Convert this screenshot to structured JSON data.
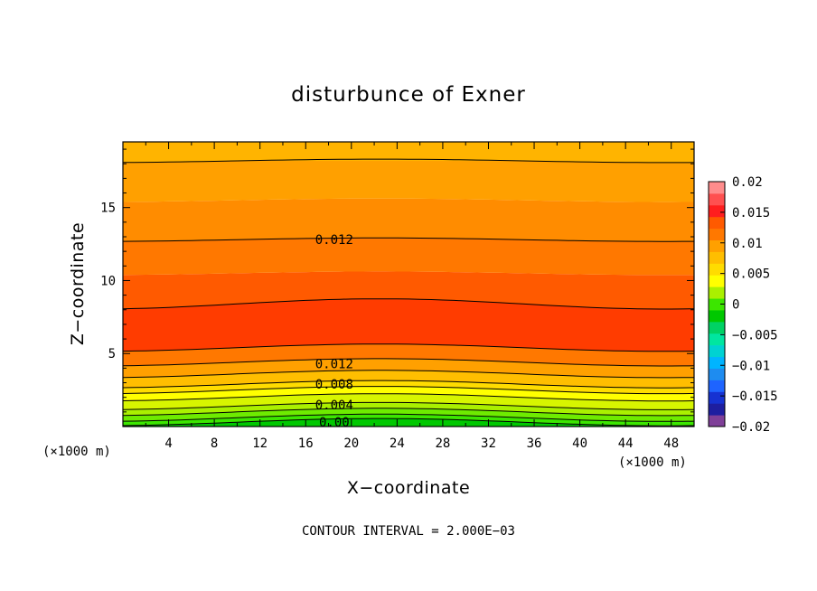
{
  "chart_data": {
    "type": "contour",
    "title": "disturbunce of Exner",
    "xlabel": "X−coordinate",
    "ylabel": "Z−coordinate",
    "x_unit": "(×1000 m)",
    "y_unit": "(×1000 m)",
    "xlim": [
      0,
      50
    ],
    "ylim": [
      0,
      19.5
    ],
    "x_ticks": [
      4,
      8,
      12,
      16,
      20,
      24,
      28,
      32,
      36,
      40,
      44,
      48
    ],
    "y_ticks": [
      5,
      10,
      15
    ],
    "contour_interval_text": "CONTOUR INTERVAL = 2.000E−03",
    "contour_labels": [
      {
        "text": "0.012",
        "x": 18.5,
        "z": 12.8
      },
      {
        "text": "0.012",
        "x": 18.5,
        "z": 4.3
      },
      {
        "text": "0.008",
        "x": 18.5,
        "z": 2.9
      },
      {
        "text": "0.004",
        "x": 18.5,
        "z": 1.5
      },
      {
        "text": "0.00",
        "x": 18.5,
        "z": 0.3
      }
    ],
    "colorbar": {
      "ticks": [
        "0.02",
        "0.015",
        "0.01",
        "0.005",
        "0",
        "−0.005",
        "−0.01",
        "−0.015",
        "−0.02"
      ],
      "min": -0.02,
      "max": 0.02,
      "levels_colors": [
        "#7f3f98",
        "#1e1ea0",
        "#1632d2",
        "#1e64ff",
        "#1e8cf0",
        "#00b4ff",
        "#00d2d2",
        "#00e6a0",
        "#00d264",
        "#00c800",
        "#3ce600",
        "#aaf000",
        "#ffff00",
        "#ffdc00",
        "#ffbe00",
        "#ffa000",
        "#ff7800",
        "#ff5a00",
        "#ff1e1e",
        "#ff5050",
        "#ff8c8c"
      ]
    },
    "fill_bands": [
      {
        "zmin": 0.0,
        "zmax": 0.3,
        "color": "#00c800"
      },
      {
        "zmin": 0.3,
        "zmax": 0.6,
        "color": "#3ce600"
      },
      {
        "zmin": 0.6,
        "zmax": 1.0,
        "color": "#6eeb00"
      },
      {
        "zmin": 1.0,
        "zmax": 1.4,
        "color": "#aaf000"
      },
      {
        "zmin": 1.4,
        "zmax": 2.0,
        "color": "#d7f500"
      },
      {
        "zmin": 2.0,
        "zmax": 2.5,
        "color": "#ffff00"
      },
      {
        "zmin": 2.5,
        "zmax": 2.9,
        "color": "#ffdc00"
      },
      {
        "zmin": 2.9,
        "zmax": 3.6,
        "color": "#ffbe00"
      },
      {
        "zmin": 3.6,
        "zmax": 4.4,
        "color": "#ffa000"
      },
      {
        "zmin": 4.4,
        "zmax": 5.4,
        "color": "#ff7800"
      },
      {
        "zmin": 5.4,
        "zmax": 8.4,
        "color": "#ff3c00"
      },
      {
        "zmin": 8.4,
        "zmax": 10.5,
        "color": "#ff5a00"
      },
      {
        "zmin": 10.5,
        "zmax": 12.8,
        "color": "#ff7800"
      },
      {
        "zmin": 12.8,
        "zmax": 15.5,
        "color": "#ff8c00"
      },
      {
        "zmin": 15.5,
        "zmax": 18.2,
        "color": "#ffa000"
      },
      {
        "zmin": 18.2,
        "zmax": 19.5,
        "color": "#ffb400"
      }
    ],
    "contour_levels_z": [
      0.3,
      0.6,
      1.0,
      1.4,
      2.0,
      2.5,
      2.9,
      3.6,
      4.4,
      5.4,
      8.4,
      12.8,
      18.2
    ]
  }
}
